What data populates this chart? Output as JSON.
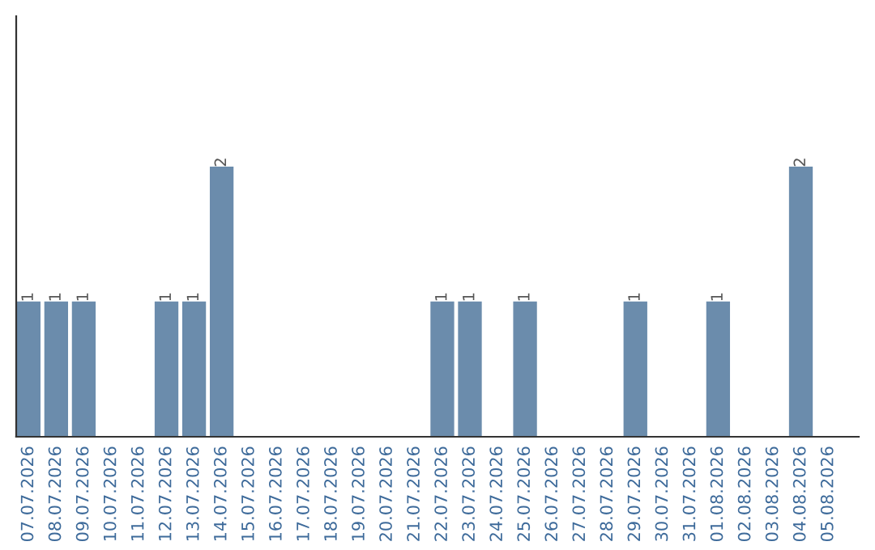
{
  "chart_data": {
    "type": "bar",
    "categories": [
      "07.07.2026",
      "08.07.2026",
      "09.07.2026",
      "10.07.2026",
      "11.07.2026",
      "12.07.2026",
      "13.07.2026",
      "14.07.2026",
      "15.07.2026",
      "16.07.2026",
      "17.07.2026",
      "18.07.2026",
      "19.07.2026",
      "20.07.2026",
      "21.07.2026",
      "22.07.2026",
      "23.07.2026",
      "24.07.2026",
      "25.07.2026",
      "26.07.2026",
      "27.07.2026",
      "28.07.2026",
      "29.07.2026",
      "30.07.2026",
      "31.07.2026",
      "01.08.2026",
      "02.08.2026",
      "03.08.2026",
      "04.08.2026",
      "05.08.2026"
    ],
    "values": [
      1,
      1,
      1,
      0,
      0,
      1,
      1,
      2,
      0,
      0,
      0,
      0,
      0,
      0,
      0,
      1,
      1,
      0,
      1,
      0,
      0,
      0,
      1,
      0,
      0,
      1,
      0,
      0,
      2,
      0
    ],
    "value_labels": [
      "1",
      "1",
      "1",
      null,
      null,
      "1",
      "1",
      "2",
      null,
      null,
      null,
      null,
      null,
      null,
      null,
      "1",
      "1",
      null,
      "1",
      null,
      null,
      null,
      "1",
      null,
      null,
      "1",
      null,
      null,
      "2",
      null
    ],
    "color": "#6b8cac",
    "grid": false,
    "legend": false
  }
}
